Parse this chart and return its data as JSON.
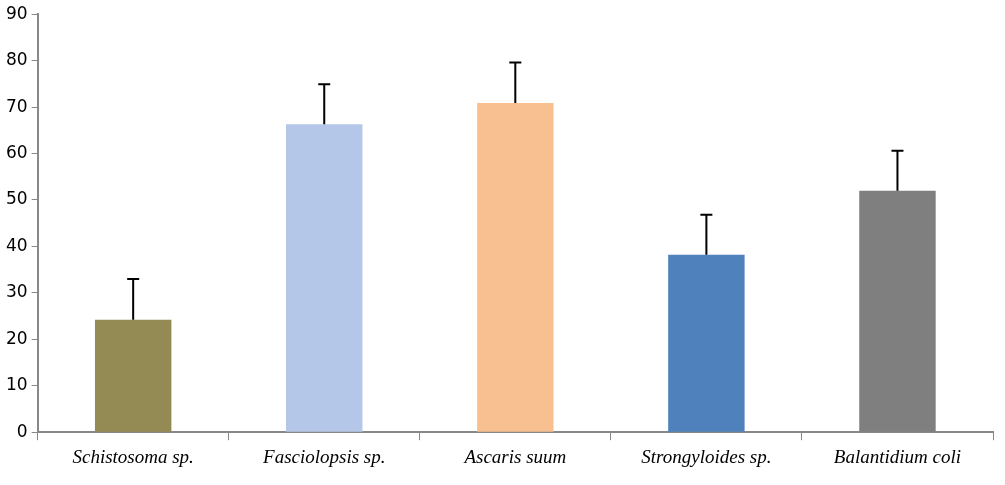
{
  "chart_data": {
    "type": "bar",
    "categories": [
      "Schistosoma sp.",
      "Fasciolopsis sp.",
      "Ascaris suum",
      "Strongyloides sp.",
      "Balantidium coli"
    ],
    "values": [
      24.2,
      66.3,
      70.9,
      38.2,
      52.0
    ],
    "colors": [
      "#948a54",
      "#b4c7e9",
      "#f8c090",
      "#4f81bd",
      "#7f7f7f"
    ],
    "errors": [
      [
        24.2,
        33.0
      ],
      [
        66.3,
        74.9
      ],
      [
        70.9,
        79.6
      ],
      [
        38.2,
        46.8
      ],
      [
        52.0,
        60.6
      ]
    ],
    "ylim": [
      0,
      90
    ],
    "yticks": [
      0,
      10,
      20,
      30,
      40,
      50,
      60,
      70,
      80,
      90
    ],
    "grid": false,
    "legend": false
  }
}
